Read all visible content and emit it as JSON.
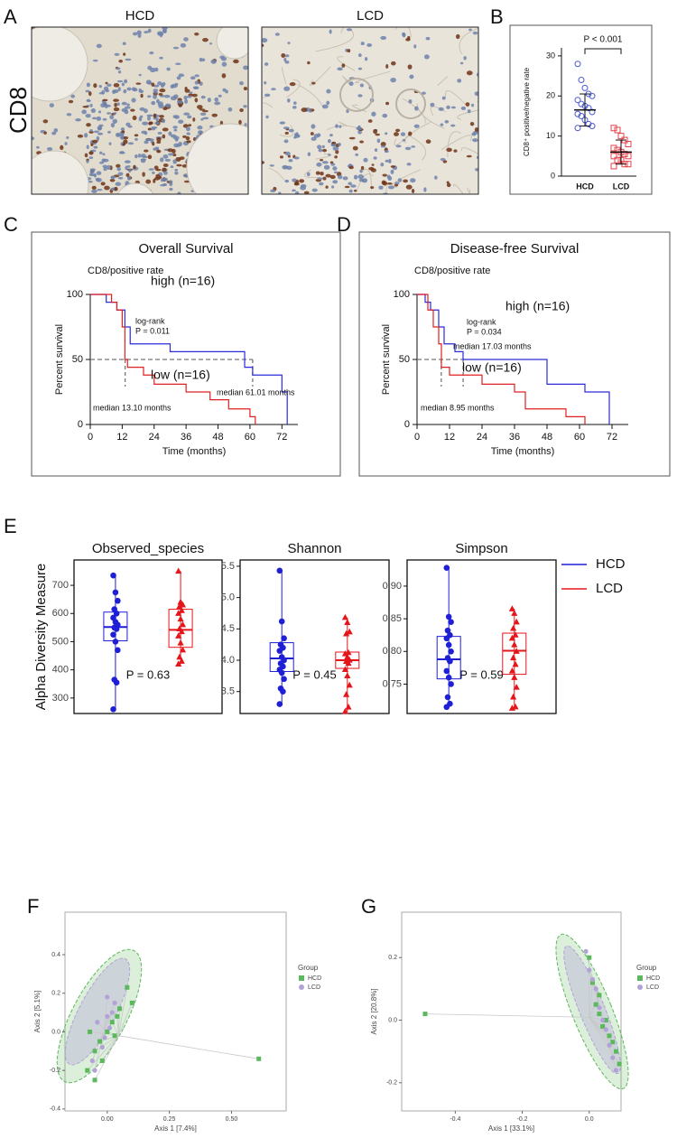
{
  "panel_labels": [
    "A",
    "B",
    "C",
    "D",
    "E",
    "F",
    "G"
  ],
  "micrographs": {
    "stain": "CD8",
    "labels": [
      "HCD",
      "LCD"
    ],
    "colors": [
      "#1f2fd6",
      "#e0201b"
    ]
  },
  "chart_data": [
    {
      "type": "dot",
      "annotation": "P < 0.001",
      "ylabel": "CD8⁺ positive/negative rate",
      "categories": [
        "HCD",
        "LCD"
      ],
      "colors": [
        "#4a5bd1",
        "#e0444c"
      ],
      "points": [
        [
          28,
          24,
          22,
          20.5,
          20,
          19,
          18,
          17.5,
          17,
          16,
          15.5,
          15,
          14,
          13,
          12.5,
          12
        ],
        [
          12,
          11.5,
          10,
          9,
          8,
          7,
          6.5,
          6,
          5.5,
          5,
          5,
          4,
          4,
          3,
          3,
          2.5
        ]
      ],
      "means": [
        16.5,
        6
      ],
      "sds": [
        4,
        3
      ],
      "ylim": [
        0,
        32
      ],
      "yticks": [
        0,
        10,
        20,
        30
      ]
    },
    {
      "type": "survival",
      "title": "Overall Survival",
      "subtitle": "CD8/positive rate",
      "xlabel": "Time (months)",
      "ylabel": "Percent survival",
      "xlim": [
        0,
        78
      ],
      "ylim": [
        0,
        100
      ],
      "xticks": [
        0,
        12,
        24,
        36,
        48,
        60,
        72
      ],
      "yticks": [
        0,
        50,
        100
      ],
      "series": [
        {
          "name": "high (n=16)",
          "color": "#2b2bd9",
          "x": [
            0,
            6,
            6,
            10,
            10,
            13,
            13,
            15,
            15,
            30,
            30,
            58,
            58,
            61,
            61,
            72,
            72,
            74,
            74
          ],
          "values": [
            100,
            100,
            94,
            94,
            88,
            88,
            75,
            75,
            62,
            62,
            56,
            56,
            44,
            44,
            38,
            38,
            25,
            25,
            0
          ]
        },
        {
          "name": "low (n=16)",
          "color": "#e02020",
          "x": [
            0,
            8,
            8,
            10,
            10,
            12,
            12,
            13,
            13,
            14,
            14,
            20,
            20,
            24,
            24,
            36,
            36,
            45,
            45,
            52,
            52,
            60,
            60,
            62,
            62
          ],
          "values": [
            100,
            100,
            94,
            94,
            88,
            88,
            75,
            75,
            50,
            50,
            44,
            44,
            38,
            38,
            31,
            31,
            25,
            25,
            19,
            19,
            12,
            12,
            6,
            6,
            0
          ]
        }
      ],
      "reference_y": 50,
      "median_x": [
        13.1,
        61.01
      ],
      "annotations": [
        {
          "text": "log-rank",
          "color": "#111"
        },
        {
          "text": "P = 0.011",
          "color": "#111"
        },
        {
          "text": "median 13.10 months",
          "color": "#e02020"
        },
        {
          "text": "median 61.01 months",
          "color": "#2b2bd9"
        }
      ]
    },
    {
      "type": "survival",
      "title": "Disease-free Survival",
      "subtitle": "CD8/positive rate",
      "xlabel": "Time (months)",
      "ylabel": "Percent survival",
      "xlim": [
        0,
        78
      ],
      "ylim": [
        0,
        100
      ],
      "xticks": [
        0,
        12,
        24,
        36,
        48,
        60,
        72
      ],
      "yticks": [
        0,
        50,
        100
      ],
      "series": [
        {
          "name": "high (n=16)",
          "color": "#2b2bd9",
          "x": [
            0,
            3,
            3,
            5,
            5,
            8,
            8,
            10,
            10,
            14,
            14,
            17,
            17,
            48,
            48,
            62,
            62,
            71,
            71
          ],
          "values": [
            100,
            100,
            94,
            94,
            88,
            88,
            75,
            75,
            62,
            62,
            56,
            56,
            50,
            50,
            31,
            31,
            25,
            25,
            0
          ]
        },
        {
          "name": "low (n=16)",
          "color": "#e02020",
          "x": [
            0,
            4,
            4,
            6,
            6,
            8,
            8,
            9,
            9,
            12,
            12,
            24,
            24,
            36,
            36,
            40,
            40,
            55,
            55,
            62,
            62
          ],
          "values": [
            100,
            100,
            88,
            88,
            75,
            75,
            62,
            62,
            44,
            44,
            38,
            38,
            31,
            31,
            25,
            25,
            12,
            12,
            6,
            6,
            0
          ]
        }
      ],
      "reference_y": 50,
      "median_x": [
        8.95,
        17.03
      ],
      "annotations": [
        {
          "text": "log-rank",
          "color": "#111"
        },
        {
          "text": "P = 0.034",
          "color": "#111"
        },
        {
          "text": "median 17.03 months",
          "color": "#2b2bd9"
        },
        {
          "text": "median 8.95 months",
          "color": "#e02020"
        }
      ]
    },
    {
      "type": "box",
      "ylabel": "Alpha Diversity Measure",
      "series": [
        {
          "name": "HCD",
          "color": "#1f1fd6"
        },
        {
          "name": "LCD",
          "color": "#e5161b"
        }
      ],
      "subplots": [
        {
          "title": "Observed_species",
          "annotation": "P = 0.63",
          "ylim": [
            245,
            790
          ],
          "yticks": [
            300,
            400,
            500,
            600,
            700
          ],
          "groups": [
            {
              "min": 260,
              "q1": 503,
              "median": 552,
              "q3": 605,
              "max": 735,
              "points": [
                735,
                675,
                645,
                615,
                600,
                585,
                570,
                560,
                550,
                545,
                525,
                500,
                470,
                365,
                355,
                260
              ]
            },
            {
              "min": 420,
              "q1": 480,
              "median": 542,
              "q3": 615,
              "max": 750,
              "points": [
                750,
                640,
                630,
                625,
                610,
                600,
                580,
                560,
                545,
                535,
                520,
                495,
                470,
                445,
                430,
                420
              ]
            }
          ]
        },
        {
          "title": "Shannon",
          "annotation": "P = 0.45",
          "ylim": [
            3.15,
            5.6
          ],
          "yticks": [
            3.5,
            {
              "value": 4,
              "label": "4.0"
            },
            4.5,
            {
              "value": 5,
              "label": "5.0"
            },
            5.5
          ],
          "groups": [
            {
              "min": 3.3,
              "q1": 3.82,
              "median": 4.03,
              "q3": 4.28,
              "max": 5.43,
              "points": [
                5.43,
                4.62,
                4.35,
                4.25,
                4.2,
                4.15,
                4.05,
                4.0,
                3.95,
                3.9,
                3.85,
                3.8,
                3.7,
                3.55,
                3.5,
                3.3
              ]
            },
            {
              "min": 3.18,
              "q1": 3.87,
              "median": 4.0,
              "q3": 4.13,
              "max": 4.68,
              "points": [
                4.68,
                4.6,
                4.45,
                4.42,
                4.12,
                4.1,
                4.05,
                4.0,
                3.98,
                3.95,
                3.85,
                3.75,
                3.6,
                3.45,
                3.25,
                3.18
              ]
            }
          ]
        },
        {
          "title": "Simpson",
          "annotation": "P = 0.59",
          "ylim": [
            0.705,
            0.94
          ],
          "yticks": [
            0.75,
            {
              "value": 0.8,
              "label": "0.80"
            },
            0.85,
            {
              "value": 0.9,
              "label": "0.90"
            }
          ],
          "groups": [
            {
              "min": 0.715,
              "q1": 0.758,
              "median": 0.788,
              "q3": 0.823,
              "max": 0.928,
              "points": [
                0.928,
                0.853,
                0.845,
                0.832,
                0.825,
                0.82,
                0.81,
                0.8,
                0.79,
                0.785,
                0.77,
                0.76,
                0.75,
                0.73,
                0.72,
                0.715
              ]
            },
            {
              "min": 0.713,
              "q1": 0.765,
              "median": 0.801,
              "q3": 0.828,
              "max": 0.865,
              "points": [
                0.865,
                0.858,
                0.845,
                0.835,
                0.825,
                0.82,
                0.81,
                0.8,
                0.79,
                0.78,
                0.77,
                0.76,
                0.745,
                0.73,
                0.715,
                0.713
              ]
            }
          ]
        }
      ]
    },
    {
      "type": "scatter",
      "xlabel": "Axis 1 [7.4%]",
      "ylabel": "Axis 2 [5.1%]",
      "legend_title": "Group",
      "xlim": [
        -0.17,
        0.72
      ],
      "ylim": [
        -0.41,
        0.62
      ],
      "xticks": [
        {
          "value": 0,
          "label": "0.00"
        },
        0.25,
        {
          "value": 0.5,
          "label": "0.50"
        }
      ],
      "yticks": [
        -0.4,
        -0.2,
        {
          "value": 0,
          "label": "0.0"
        },
        0.2,
        0.4
      ],
      "series": [
        {
          "name": "HCD",
          "color": "#5cb85c",
          "x": [
            0.08,
            0.1,
            -0.05,
            -0.08,
            -0.05,
            0.02,
            0.05,
            0.0,
            -0.03,
            0.03,
            -0.07,
            0.61,
            -0.02,
            0.04
          ],
          "values": [
            0.23,
            0.15,
            -0.25,
            -0.2,
            -0.1,
            0.05,
            0.12,
            0.0,
            -0.05,
            -0.02,
            0.0,
            -0.14,
            -0.15,
            0.08
          ]
        },
        {
          "name": "LCD",
          "color": "#b3a2d8",
          "x": [
            0.0,
            0.02,
            -0.04,
            -0.02,
            0.01,
            -0.06,
            0.03,
            -0.01,
            0.0,
            -0.05
          ],
          "values": [
            0.18,
            0.1,
            0.05,
            -0.08,
            0.02,
            -0.15,
            0.15,
            -0.03,
            0.08,
            -0.2
          ]
        }
      ]
    },
    {
      "type": "scatter",
      "xlabel": "Axis 1 [33.1%]",
      "ylabel": "Axis 2 [20.8%]",
      "legend_title": "Group",
      "xlim": [
        -0.56,
        0.095
      ],
      "ylim": [
        -0.29,
        0.345
      ],
      "xticks": [
        -0.4,
        -0.2,
        {
          "value": 0,
          "label": "0.0"
        }
      ],
      "yticks": [
        -0.2,
        {
          "value": 0,
          "label": "0.0"
        },
        0.2
      ],
      "series": [
        {
          "name": "HCD",
          "color": "#5cb85c",
          "x": [
            0.0,
            0.01,
            0.02,
            0.05,
            0.06,
            0.08,
            0.04,
            0.03,
            0.07,
            0.03,
            0.09,
            -0.49
          ],
          "values": [
            0.2,
            0.12,
            0.05,
            0.0,
            -0.05,
            -0.1,
            -0.02,
            0.08,
            -0.07,
            0.02,
            -0.14,
            0.02
          ]
        },
        {
          "name": "LCD",
          "color": "#b3a2d8",
          "x": [
            -0.01,
            0.0,
            0.02,
            0.03,
            0.05,
            0.06,
            0.04,
            0.01,
            0.07,
            0.08
          ],
          "values": [
            0.22,
            0.16,
            0.1,
            0.04,
            -0.03,
            -0.08,
            0.0,
            0.13,
            -0.12,
            -0.16
          ]
        }
      ]
    }
  ]
}
